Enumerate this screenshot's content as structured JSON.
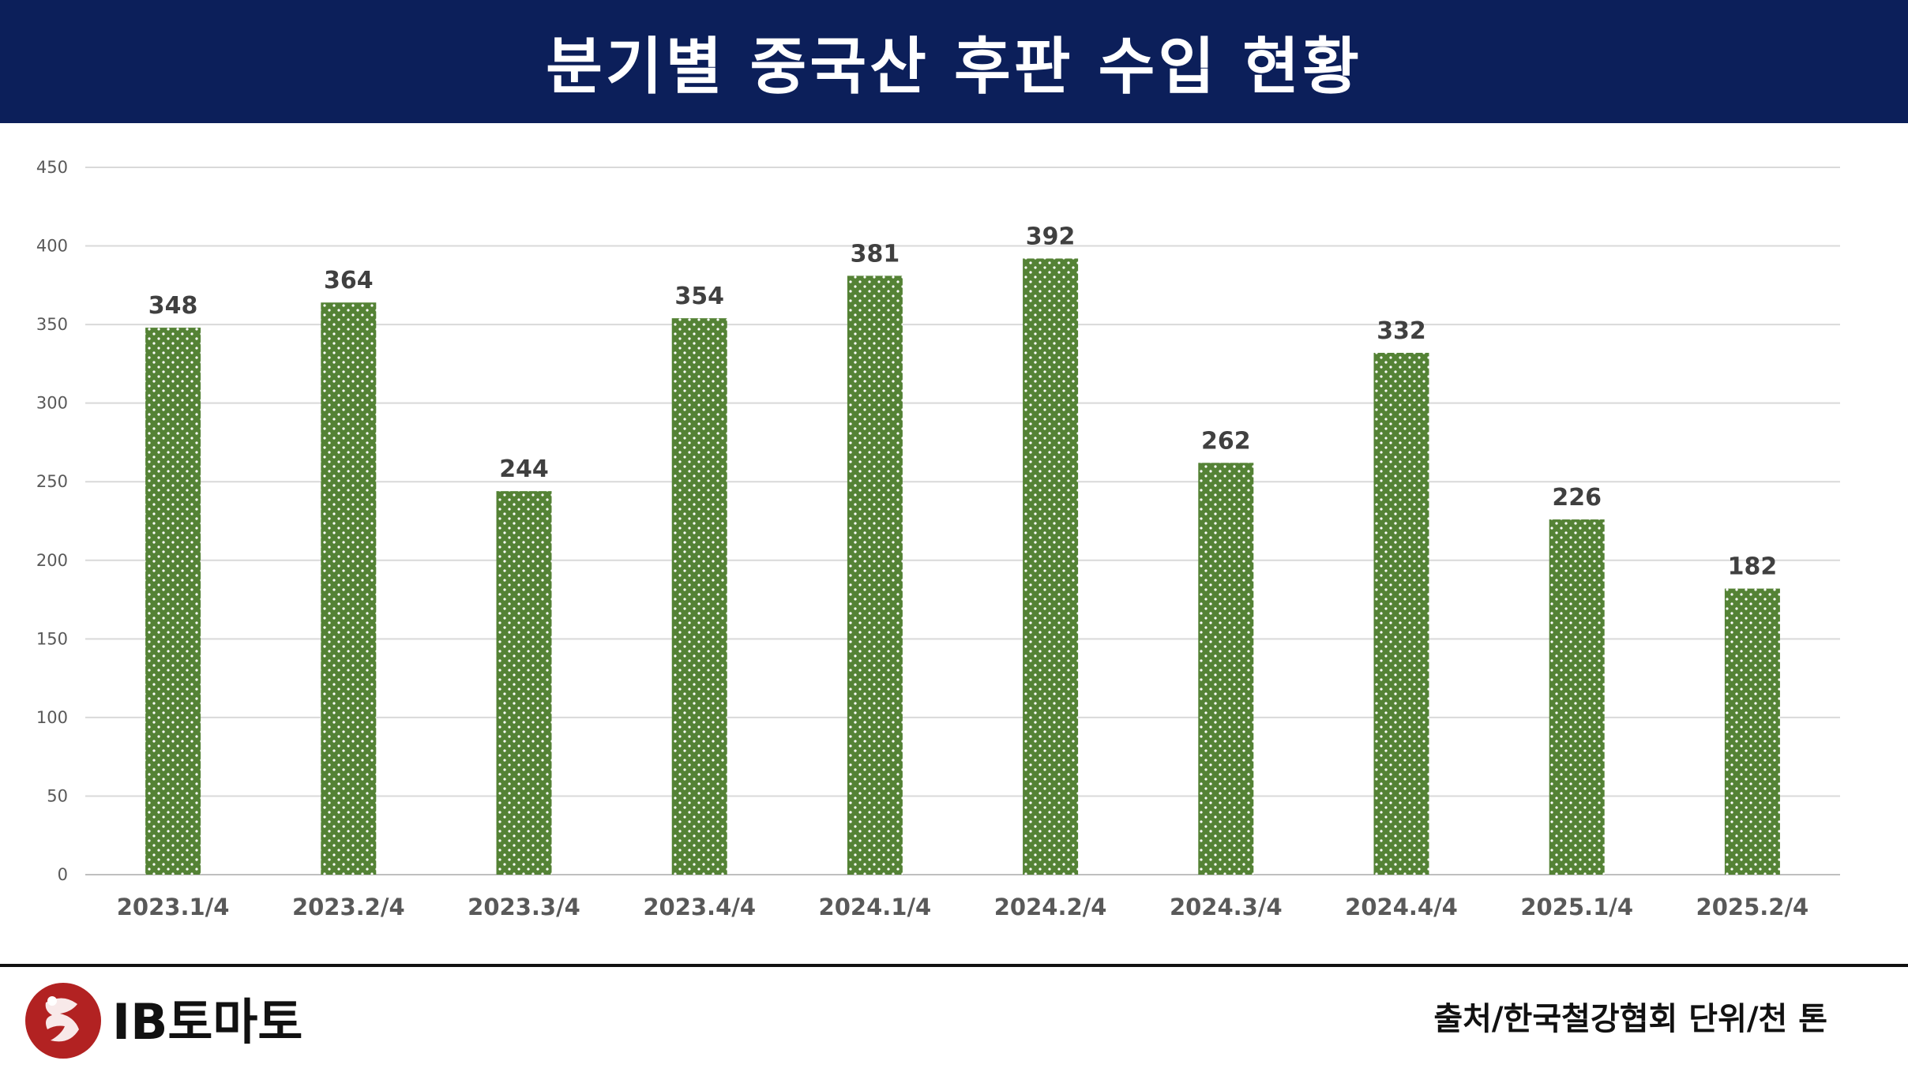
{
  "header": {
    "title": "분기별 중국산 후판 수입 현황"
  },
  "footer": {
    "source": "출처/한국철강협회 단위/천 톤",
    "logo_icon": "ib-tomato-logo",
    "logo_text": "IB토마토"
  },
  "colors": {
    "header_bg": "#0c1f5a",
    "bar": "#548235",
    "bar_dots": "#ffffff",
    "logo_red": "#b22222"
  },
  "chart_data": {
    "type": "bar",
    "categories": [
      "2023.1/4",
      "2023.2/4",
      "2023.3/4",
      "2023.4/4",
      "2024.1/4",
      "2024.2/4",
      "2024.3/4",
      "2024.4/4",
      "2025.1/4",
      "2025.2/4"
    ],
    "values": [
      348,
      364,
      244,
      354,
      381,
      392,
      262,
      332,
      226,
      182
    ],
    "ylim": [
      0,
      450
    ],
    "yticks": [
      0,
      50,
      100,
      150,
      200,
      250,
      300,
      350,
      400,
      450
    ],
    "grid": true,
    "data_labels": true,
    "xlabel": "",
    "ylabel": ""
  }
}
